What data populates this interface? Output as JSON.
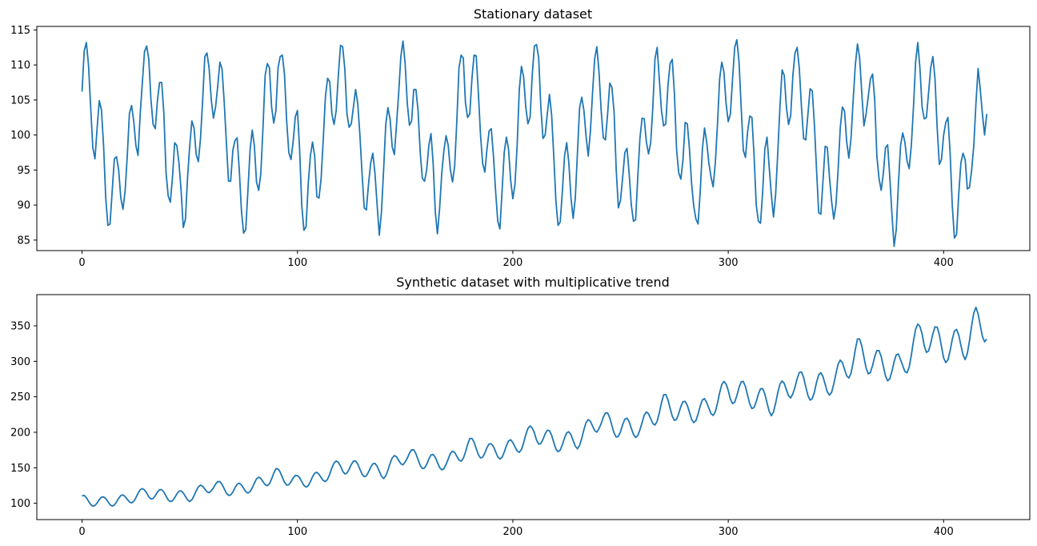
{
  "chart_data": [
    {
      "type": "line",
      "title": "Stationary dataset",
      "xlabel": "",
      "ylabel": "",
      "xlim": [
        -21,
        440
      ],
      "ylim": [
        83.5,
        115.5
      ],
      "xticks": [
        0,
        100,
        200,
        300,
        400
      ],
      "yticks": [
        85,
        90,
        95,
        100,
        105,
        110,
        115
      ],
      "grid": false,
      "series": [
        {
          "color": "#1f77b4",
          "x_start": 0,
          "x_step": 1,
          "values": [
            106.2,
            112.0,
            113.2,
            110.0,
            104.0,
            98.2,
            96.6,
            101.0,
            104.9,
            103.6,
            98.5,
            91.0,
            87.1,
            87.3,
            92.0,
            96.6,
            96.9,
            95.0,
            91.0,
            89.4,
            92.0,
            97.0,
            103.1,
            104.2,
            102.0,
            98.5,
            97.1,
            103.0,
            107.5,
            111.9,
            112.7,
            110.8,
            105.0,
            101.5,
            100.9,
            104.9,
            107.5,
            107.5,
            103.0,
            94.6,
            91.3,
            90.4,
            94.0,
            98.9,
            98.5,
            96.0,
            92.0,
            86.8,
            88.0,
            94.0,
            98.5,
            102.0,
            101.0,
            97.2,
            96.2,
            99.5,
            105.0,
            111.2,
            111.7,
            109.5,
            105.0,
            102.4,
            104.0,
            107.0,
            110.4,
            109.4,
            104.7,
            99.0,
            93.4,
            93.4,
            97.8,
            99.2,
            99.6,
            95.0,
            89.2,
            86.0,
            86.5,
            92.0,
            97.8,
            100.7,
            98.5,
            93.3,
            92.1,
            94.5,
            101.0,
            108.5,
            110.2,
            109.6,
            104.0,
            101.7,
            103.5,
            109.6,
            111.2,
            111.4,
            108.6,
            102.0,
            97.5,
            96.5,
            99.0,
            102.6,
            103.5,
            98.0,
            90.0,
            86.4,
            86.9,
            93.0,
            97.0,
            99.0,
            97.0,
            91.2,
            91.0,
            93.8,
            99.5,
            105.5,
            108.1,
            107.6,
            103.0,
            101.5,
            103.5,
            108.6,
            112.8,
            112.6,
            109.4,
            103.0,
            101.1,
            101.6,
            104.0,
            106.5,
            104.5,
            100.0,
            94.5,
            89.6,
            89.3,
            93.0,
            96.0,
            97.4,
            94.5,
            90.0,
            85.7,
            89.0,
            95.0,
            101.5,
            103.9,
            102.3,
            98.3,
            97.2,
            101.5,
            106.0,
            111.2,
            113.4,
            110.2,
            104.5,
            101.4,
            102.0,
            106.5,
            106.5,
            103.5,
            97.5,
            93.8,
            93.4,
            95.0,
            98.5,
            100.2,
            96.0,
            89.0,
            85.9,
            89.5,
            94.5,
            97.8,
            99.9,
            98.5,
            95.0,
            93.3,
            95.6,
            102.0,
            109.6,
            111.4,
            111.0,
            104.6,
            102.5,
            103.0,
            108.0,
            111.4,
            111.3,
            106.0,
            100.0,
            95.9,
            94.7,
            98.0,
            100.6,
            100.9,
            97.0,
            92.0,
            87.7,
            86.6,
            92.0,
            97.5,
            99.7,
            98.0,
            93.5,
            90.9,
            93.0,
            98.5,
            106.5,
            109.8,
            108.3,
            104.0,
            101.6,
            102.5,
            108.5,
            112.7,
            112.9,
            111.0,
            104.0,
            99.5,
            100.0,
            103.0,
            105.8,
            102.9,
            97.0,
            90.5,
            87.1,
            87.6,
            92.0,
            97.0,
            98.9,
            96.0,
            91.0,
            88.1,
            91.0,
            97.5,
            103.9,
            105.4,
            103.5,
            99.8,
            97.0,
            100.5,
            106.0,
            110.9,
            112.6,
            109.0,
            103.5,
            99.6,
            99.3,
            103.0,
            107.4,
            106.8,
            103.3,
            95.0,
            89.6,
            90.7,
            94.0,
            97.5,
            98.1,
            94.5,
            90.0,
            87.7,
            87.9,
            94.0,
            99.5,
            102.4,
            102.3,
            99.0,
            97.3,
            98.9,
            104.0,
            110.9,
            112.5,
            108.0,
            103.5,
            101.3,
            101.6,
            107.0,
            110.2,
            110.8,
            106.0,
            98.0,
            94.6,
            93.7,
            96.5,
            101.8,
            101.6,
            98.0,
            93.0,
            89.8,
            88.0,
            87.3,
            92.0,
            98.0,
            101.0,
            99.0,
            96.0,
            94.0,
            92.6,
            96.0,
            101.5,
            108.0,
            110.4,
            109.0,
            104.5,
            101.9,
            103.0,
            108.0,
            112.5,
            113.6,
            110.5,
            104.0,
            97.8,
            96.8,
            100.5,
            102.7,
            102.5,
            97.0,
            90.0,
            87.7,
            87.4,
            92.0,
            98.0,
            99.7,
            95.5,
            91.5,
            88.3,
            91.5,
            97.5,
            104.0,
            109.3,
            108.5,
            104.0,
            101.5,
            102.8,
            108.5,
            111.7,
            112.5,
            109.5,
            104.0,
            99.5,
            99.3,
            103.0,
            106.6,
            106.3,
            101.5,
            95.0,
            88.9,
            88.7,
            93.5,
            98.4,
            98.2,
            94.0,
            90.5,
            88.0,
            90.0,
            95.0,
            101.0,
            104.0,
            103.4,
            99.0,
            96.7,
            99.5,
            105.0,
            110.0,
            113.0,
            111.0,
            106.0,
            101.3,
            103.0,
            105.5,
            108.0,
            108.7,
            105.0,
            97.0,
            93.8,
            92.1,
            94.5,
            98.2,
            98.6,
            94.0,
            88.7,
            84.1,
            86.5,
            93.0,
            98.5,
            100.3,
            99.0,
            96.3,
            95.2,
            98.5,
            104.0,
            110.5,
            113.2,
            109.5,
            104.0,
            102.3,
            102.5,
            106.0,
            109.6,
            111.2,
            108.0,
            101.0,
            95.8,
            96.5,
            100.0,
            101.8,
            102.5,
            97.5,
            90.0,
            85.3,
            85.8,
            91.5,
            96.0,
            97.4,
            96.5,
            92.3,
            92.5,
            95.0,
            98.5,
            104.5,
            109.5,
            106.5,
            103.0,
            100.0,
            103.0
          ]
        }
      ]
    },
    {
      "type": "line",
      "title": "Synthetic dataset with multiplicative trend",
      "xlabel": "",
      "ylabel": "",
      "xlim": [
        -21,
        440
      ],
      "ylim": [
        77,
        394
      ],
      "xticks": [
        0,
        100,
        200,
        300,
        400
      ],
      "yticks": [
        100,
        150,
        200,
        250,
        300,
        350
      ],
      "grid": false,
      "trend_points": [
        [
          0,
          104
        ],
        [
          10,
          102
        ],
        [
          20,
          105
        ],
        [
          30,
          115
        ],
        [
          40,
          110
        ],
        [
          50,
          110
        ],
        [
          60,
          125
        ],
        [
          70,
          118
        ],
        [
          80,
          125
        ],
        [
          90,
          140
        ],
        [
          100,
          130
        ],
        [
          110,
          135
        ],
        [
          120,
          153
        ],
        [
          130,
          148
        ],
        [
          140,
          145
        ],
        [
          150,
          168
        ],
        [
          160,
          158
        ],
        [
          170,
          158
        ],
        [
          180,
          180
        ],
        [
          190,
          172
        ],
        [
          200,
          178
        ],
        [
          210,
          200
        ],
        [
          220,
          185
        ],
        [
          230,
          190
        ],
        [
          240,
          218
        ],
        [
          250,
          205
        ],
        [
          260,
          208
        ],
        [
          270,
          238
        ],
        [
          280,
          228
        ],
        [
          290,
          232
        ],
        [
          300,
          260
        ],
        [
          310,
          252
        ],
        [
          320,
          240
        ],
        [
          330,
          270
        ],
        [
          340,
          262
        ],
        [
          350,
          275
        ],
        [
          360,
          312
        ],
        [
          370,
          295
        ],
        [
          380,
          290
        ],
        [
          390,
          340
        ],
        [
          400,
          320
        ],
        [
          410,
          325
        ],
        [
          415,
          352
        ],
        [
          420,
          352
        ]
      ],
      "seasonal_amplitude_fraction": 0.07,
      "seasonal_period": 9,
      "series": [
        {
          "color": "#1f77b4",
          "x_start": 0,
          "x_step": 1,
          "values": []
        }
      ]
    }
  ]
}
